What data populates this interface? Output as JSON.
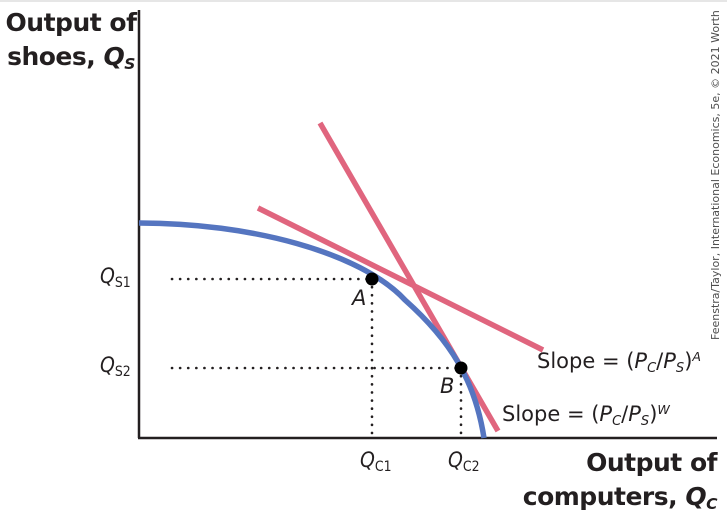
{
  "labels": {
    "y_axis_line1": "Output of",
    "y_axis_line2": "shoes,",
    "y_axis_symbol": "Q",
    "y_axis_symbol_sub": "S",
    "x_axis_line1": "Output of",
    "x_axis_line2": "computers,",
    "x_axis_symbol": "Q",
    "x_axis_symbol_sub": "C"
  },
  "ticks": {
    "qs1": {
      "base": "Q",
      "sub": "S1"
    },
    "qs2": {
      "base": "Q",
      "sub": "S2"
    },
    "qc1": {
      "base": "Q",
      "sub": "C1"
    },
    "qc2": {
      "base": "Q",
      "sub": "C2"
    }
  },
  "points": {
    "a": "A",
    "b": "B"
  },
  "slopes": {
    "autarky": {
      "prefix": "Slope = (",
      "pc": "P",
      "pc_sub": "C",
      "slash": "/",
      "ps": "P",
      "ps_sub": "S",
      "close": ")",
      "sup": "A"
    },
    "world": {
      "prefix": "Slope = (",
      "pc": "P",
      "pc_sub": "C",
      "slash": "/",
      "ps": "P",
      "ps_sub": "S",
      "close": ")",
      "sup": "W"
    }
  },
  "credit": "Feenstra/Taylor, International Economics, 5e, © 2021 Worth Publishers",
  "colors": {
    "ppf_curve": "#5575c0",
    "price_lines": "#e0657e",
    "axes": "#231f20",
    "dots": "#000000"
  }
}
